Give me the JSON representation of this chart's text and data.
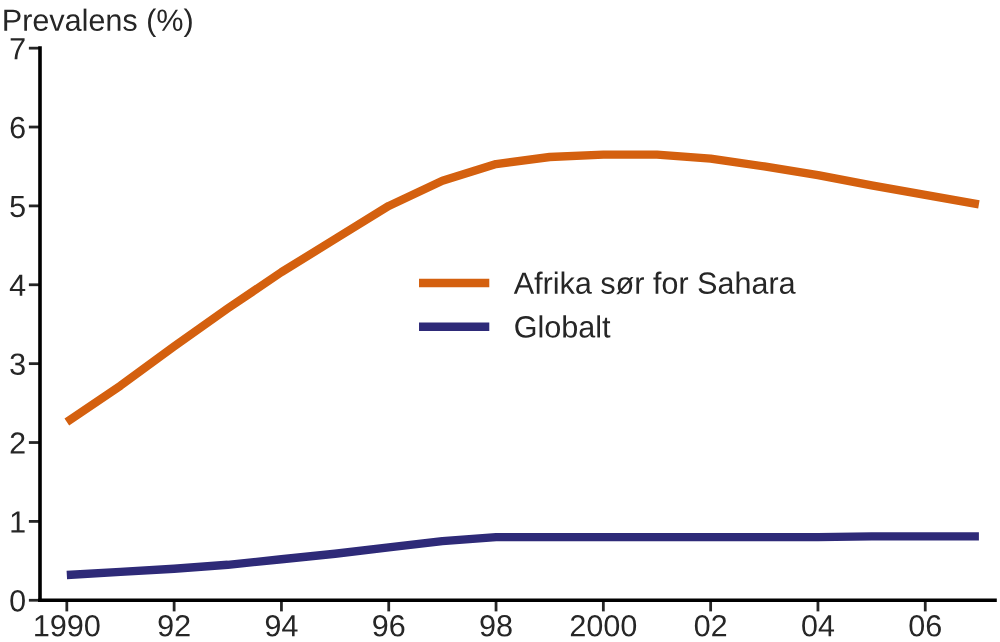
{
  "chart_data": {
    "type": "line",
    "ylabel": "Prevalens (%)",
    "x": [
      1990,
      1991,
      1992,
      1993,
      1994,
      1995,
      1996,
      1997,
      1998,
      1999,
      2000,
      2001,
      2002,
      2003,
      2004,
      2005,
      2006,
      2007
    ],
    "series": [
      {
        "name": "Afrika sør for Sahara",
        "color": "#d4600f",
        "values": [
          2.26,
          2.72,
          3.22,
          3.7,
          4.16,
          4.58,
          5.0,
          5.32,
          5.53,
          5.62,
          5.65,
          5.65,
          5.6,
          5.5,
          5.39,
          5.26,
          5.14,
          5.02
        ]
      },
      {
        "name": "Globalt",
        "color": "#2e2a78",
        "values": [
          0.32,
          0.36,
          0.4,
          0.45,
          0.52,
          0.59,
          0.67,
          0.75,
          0.8,
          0.8,
          0.8,
          0.8,
          0.8,
          0.8,
          0.8,
          0.81,
          0.81,
          0.81
        ]
      }
    ],
    "xlim": [
      1989.5,
      2007.3
    ],
    "ylim": [
      0,
      7
    ],
    "xticks": [
      {
        "value": 1990,
        "label": "1990"
      },
      {
        "value": 1992,
        "label": "92"
      },
      {
        "value": 1994,
        "label": "94"
      },
      {
        "value": 1996,
        "label": "96"
      },
      {
        "value": 1998,
        "label": "98"
      },
      {
        "value": 2000,
        "label": "2000"
      },
      {
        "value": 2002,
        "label": "02"
      },
      {
        "value": 2004,
        "label": "04"
      },
      {
        "value": 2006,
        "label": "06"
      }
    ],
    "yticks": [
      0,
      1,
      2,
      3,
      4,
      5,
      6,
      7
    ],
    "grid": false,
    "legend": "right",
    "line_style": "solid",
    "marker": "none"
  }
}
